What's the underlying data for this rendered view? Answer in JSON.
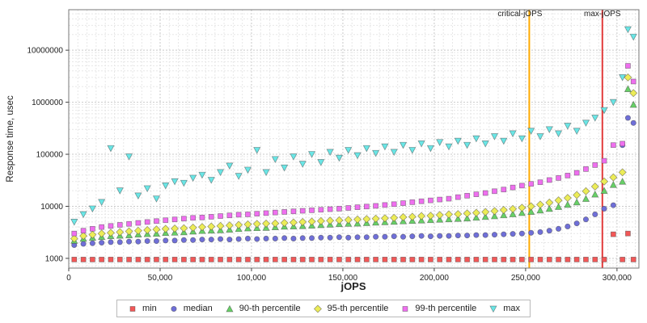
{
  "chart_data": {
    "type": "scatter",
    "title": "",
    "x_label": "jOPS",
    "y_label": "Response time, usec",
    "x_range": [
      0,
      312000
    ],
    "y_range_log": [
      650,
      60000000
    ],
    "grid": true,
    "legend_position": "bottom",
    "x_ticks": [
      {
        "v": 0,
        "label": "0"
      },
      {
        "v": 50000,
        "label": "50,000"
      },
      {
        "v": 100000,
        "label": "100,000"
      },
      {
        "v": 150000,
        "label": "150,000"
      },
      {
        "v": 200000,
        "label": "200,000"
      },
      {
        "v": 250000,
        "label": "250,000"
      },
      {
        "v": 300000,
        "label": "300,000"
      }
    ],
    "y_ticks": [
      {
        "v": 1000,
        "label": "1000"
      },
      {
        "v": 10000,
        "label": "10000"
      },
      {
        "v": 100000,
        "label": "100000"
      },
      {
        "v": 1000000,
        "label": "1000000"
      },
      {
        "v": 10000000,
        "label": "10000000"
      }
    ],
    "annotations": [
      {
        "label": "critical-jOPS",
        "x": 252000,
        "color": "#ffaa00"
      },
      {
        "label": "max-jOPS",
        "x": 292000,
        "color": "#e23b3b"
      }
    ],
    "x": [
      3000,
      8000,
      13000,
      18000,
      23000,
      28000,
      33000,
      38000,
      43000,
      48000,
      53000,
      58000,
      63000,
      68000,
      73000,
      78000,
      83000,
      88000,
      93000,
      98000,
      103000,
      108000,
      113000,
      118000,
      123000,
      128000,
      133000,
      138000,
      143000,
      148000,
      153000,
      158000,
      163000,
      168000,
      173000,
      178000,
      183000,
      188000,
      193000,
      198000,
      203000,
      208000,
      213000,
      218000,
      223000,
      228000,
      233000,
      238000,
      243000,
      248000,
      253000,
      258000,
      263000,
      268000,
      273000,
      278000,
      283000,
      288000,
      293000,
      298000,
      303000,
      306000,
      309000
    ],
    "series": [
      {
        "name": "min",
        "marker": "square",
        "color": "#f25757",
        "values": [
          950,
          950,
          950,
          950,
          950,
          950,
          950,
          950,
          950,
          950,
          950,
          950,
          950,
          950,
          950,
          950,
          950,
          950,
          950,
          950,
          950,
          950,
          950,
          950,
          950,
          950,
          950,
          950,
          950,
          950,
          950,
          950,
          950,
          950,
          950,
          950,
          950,
          950,
          950,
          950,
          950,
          950,
          950,
          950,
          950,
          950,
          950,
          950,
          950,
          950,
          950,
          950,
          950,
          950,
          950,
          950,
          950,
          950,
          950,
          2900,
          950,
          3000,
          950
        ]
      },
      {
        "name": "median",
        "marker": "circle",
        "color": "#6f6fd8",
        "values": [
          1800,
          1900,
          1950,
          2000,
          2050,
          2050,
          2100,
          2100,
          2150,
          2150,
          2200,
          2200,
          2250,
          2250,
          2300,
          2300,
          2350,
          2300,
          2350,
          2400,
          2350,
          2400,
          2400,
          2450,
          2400,
          2450,
          2450,
          2500,
          2500,
          2550,
          2500,
          2550,
          2550,
          2600,
          2600,
          2650,
          2600,
          2650,
          2700,
          2650,
          2700,
          2700,
          2750,
          2750,
          2800,
          2800,
          2850,
          2900,
          2950,
          3000,
          3100,
          3200,
          3400,
          3700,
          4100,
          4700,
          5600,
          7000,
          9000,
          10500,
          150000,
          500000,
          400000
        ]
      },
      {
        "name": "90-th percentile",
        "marker": "triangle-up",
        "color": "#67d067",
        "values": [
          2200,
          2400,
          2500,
          2600,
          2700,
          2750,
          2800,
          2900,
          2950,
          3000,
          3100,
          3150,
          3200,
          3300,
          3400,
          3450,
          3500,
          3600,
          3700,
          3800,
          3850,
          3900,
          4000,
          4100,
          4150,
          4200,
          4300,
          4400,
          4500,
          4600,
          4650,
          4700,
          4800,
          4900,
          5000,
          5100,
          5200,
          5300,
          5400,
          5500,
          5600,
          5700,
          5800,
          5900,
          6100,
          6300,
          6500,
          6800,
          7100,
          7500,
          7900,
          8400,
          9000,
          9800,
          10800,
          12000,
          14000,
          17000,
          20000,
          26000,
          30000,
          1800000,
          900000
        ]
      },
      {
        "name": "95-th percentile",
        "marker": "diamond",
        "color": "#ecec57",
        "values": [
          2400,
          2700,
          2850,
          3000,
          3100,
          3200,
          3300,
          3400,
          3500,
          3600,
          3700,
          3750,
          3800,
          3900,
          4000,
          4100,
          4200,
          4300,
          4400,
          4500,
          4600,
          4650,
          4700,
          4800,
          4900,
          5000,
          5100,
          5200,
          5300,
          5400,
          5500,
          5600,
          5700,
          5800,
          5900,
          6000,
          6200,
          6300,
          6500,
          6600,
          6800,
          7000,
          7100,
          7300,
          7500,
          7800,
          8100,
          8500,
          8900,
          9400,
          10000,
          10800,
          11800,
          13000,
          14500,
          16500,
          19500,
          24000,
          30000,
          36000,
          45000,
          3000000,
          1500000
        ]
      },
      {
        "name": "99-th percentile",
        "marker": "square",
        "color": "#ef6fef",
        "values": [
          3000,
          3400,
          3700,
          4000,
          4200,
          4400,
          4600,
          4800,
          5000,
          5200,
          5400,
          5600,
          5800,
          6000,
          6100,
          6300,
          6500,
          6700,
          6900,
          7000,
          7200,
          7400,
          7600,
          7800,
          8000,
          8200,
          8400,
          8600,
          8800,
          9000,
          9300,
          9600,
          9900,
          10200,
          10600,
          11000,
          11500,
          12000,
          12500,
          13000,
          13500,
          14000,
          15000,
          16000,
          17000,
          18000,
          19500,
          21000,
          23000,
          25000,
          27000,
          29000,
          32000,
          35000,
          39000,
          44000,
          52000,
          62000,
          75000,
          150000,
          160000,
          5000000,
          2500000
        ]
      },
      {
        "name": "max",
        "marker": "triangle-down",
        "color": "#6ae6e6",
        "values": [
          5000,
          7000,
          9000,
          12000,
          130000,
          20000,
          90000,
          16000,
          22000,
          14000,
          25000,
          30000,
          28000,
          35000,
          40000,
          32000,
          45000,
          60000,
          38000,
          50000,
          120000,
          45000,
          80000,
          55000,
          90000,
          65000,
          100000,
          70000,
          110000,
          85000,
          120000,
          95000,
          130000,
          105000,
          140000,
          110000,
          150000,
          120000,
          160000,
          130000,
          170000,
          140000,
          180000,
          150000,
          200000,
          160000,
          220000,
          180000,
          250000,
          200000,
          280000,
          220000,
          300000,
          250000,
          350000,
          280000,
          400000,
          500000,
          700000,
          1000000,
          3000000,
          25000000,
          18000000
        ]
      }
    ]
  }
}
